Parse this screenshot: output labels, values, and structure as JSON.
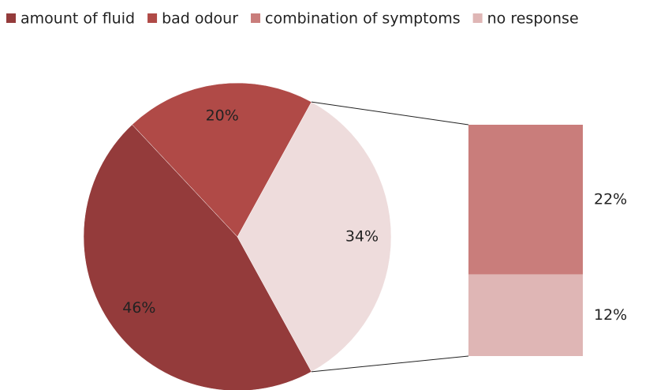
{
  "chart_data": {
    "type": "pie-of-bar",
    "categories": [
      "amount of fluid",
      "bad odour",
      "combination of symptoms",
      "no response"
    ],
    "values": [
      46,
      20,
      22,
      12
    ],
    "value_labels": [
      "46%",
      "20%",
      "22%",
      "12%"
    ],
    "colors": [
      "#943b3b",
      "#b04a47",
      "#c97d7b",
      "#dfb6b5"
    ],
    "other_value": 34,
    "other_value_label": "34%",
    "other_color": "#eedcdc",
    "legend": "top"
  }
}
